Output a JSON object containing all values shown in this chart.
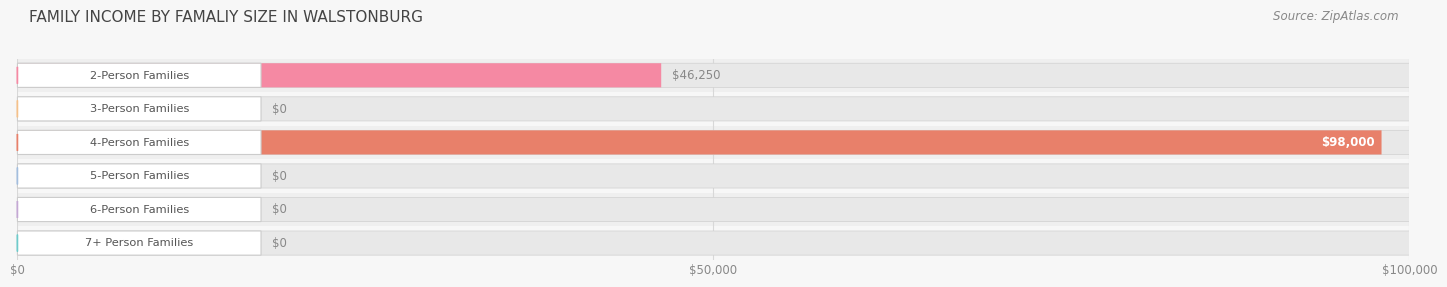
{
  "title": "FAMILY INCOME BY FAMALIY SIZE IN WALSTONBURG",
  "source": "Source: ZipAtlas.com",
  "categories": [
    "2-Person Families",
    "3-Person Families",
    "4-Person Families",
    "5-Person Families",
    "6-Person Families",
    "7+ Person Families"
  ],
  "values": [
    46250,
    0,
    98000,
    0,
    0,
    0
  ],
  "bar_colors": [
    "#f589a3",
    "#f5c18a",
    "#e8806a",
    "#a3bede",
    "#c4a8d4",
    "#6ecbcb"
  ],
  "xlim": 100000,
  "xticks": [
    0,
    50000,
    100000
  ],
  "xtick_labels": [
    "$0",
    "$50,000",
    "$100,000"
  ],
  "value_labels": [
    "$46,250",
    "$0",
    "$98,000",
    "$0",
    "$0",
    "$0"
  ],
  "title_fontsize": 11,
  "source_fontsize": 8.5,
  "background_color": "#f7f7f7",
  "bar_bg_color": "#e8e8e8",
  "row_bg_colors": [
    "#f0f0f0",
    "#f7f7f7"
  ],
  "label_text_color": "#555555",
  "grid_color": "#d8d8d8"
}
